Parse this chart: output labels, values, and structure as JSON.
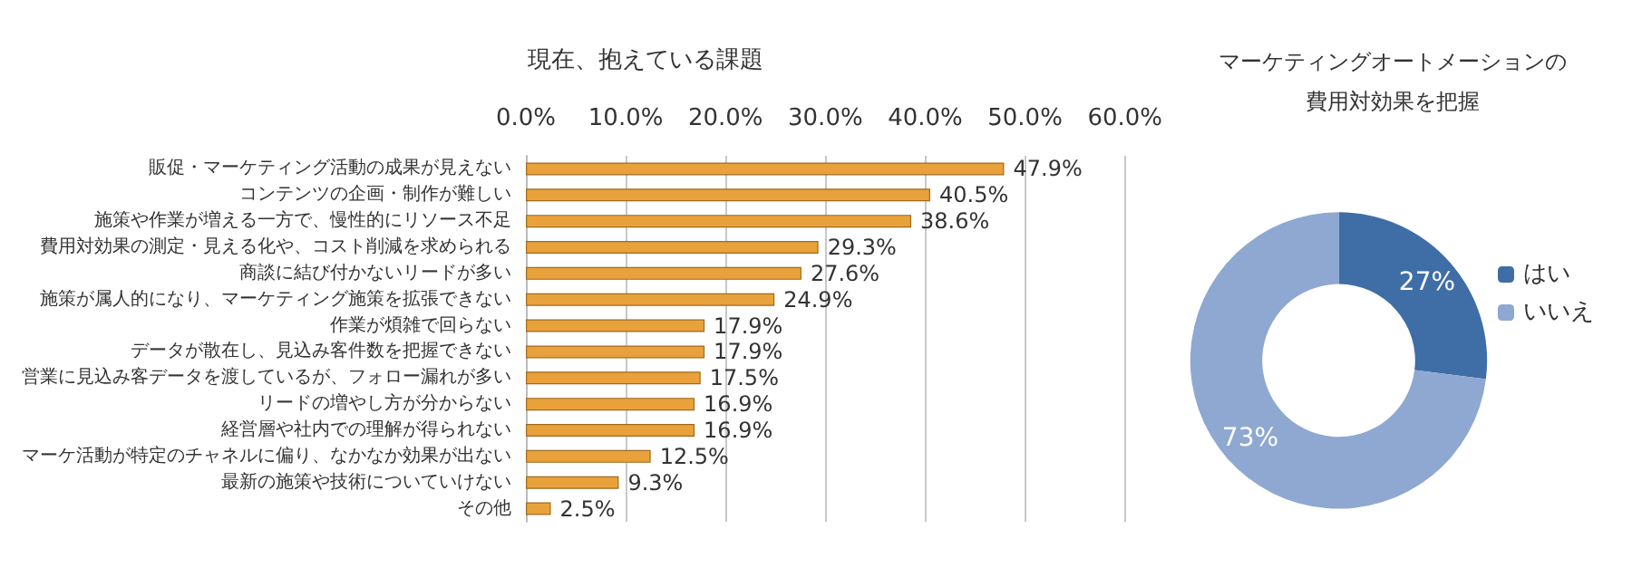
{
  "chart_data": [
    {
      "type": "bar",
      "orientation": "horizontal",
      "title": "現在、抱えている課題",
      "categories": [
        "販促・マーケティング活動の成果が見えない",
        "コンテンツの企画・制作が難しい",
        "施策や作業が増える一方で、慢性的にリソース不足",
        "費用対効果の測定・見える化や、コスト削減を求められる",
        "商談に結び付かないリードが多い",
        "施策が属人的になり、マーケティング施策を拡張できない",
        "作業が煩雑で回らない",
        "データが散在し、見込み客件数を把握できない",
        "営業に見込み客データを渡しているが、フォロー漏れが多い",
        "リードの増やし方が分からない",
        "経営層や社内での理解が得られない",
        "マーケ活動が特定のチャネルに偏り、なかなか効果が出ない",
        "最新の施策や技術についていけない",
        "その他"
      ],
      "values": [
        47.9,
        40.5,
        38.6,
        29.3,
        27.6,
        24.9,
        17.9,
        17.9,
        17.5,
        16.9,
        16.9,
        12.5,
        9.3,
        2.5
      ],
      "value_labels": [
        "47.9%",
        "40.5%",
        "38.6%",
        "29.3%",
        "27.6%",
        "24.9%",
        "17.9%",
        "17.9%",
        "17.5%",
        "16.9%",
        "16.9%",
        "12.5%",
        "9.3%",
        "2.5%"
      ],
      "color": "#e9a23b",
      "xlim": [
        0,
        60
      ],
      "xticks": [
        {
          "value": 0,
          "label": "0.0%"
        },
        {
          "value": 10,
          "label": "10.0%"
        },
        {
          "value": 20,
          "label": "20.0%"
        },
        {
          "value": 30,
          "label": "30.0%"
        },
        {
          "value": 40,
          "label": "40.0%"
        },
        {
          "value": 50,
          "label": "50.0%"
        },
        {
          "value": 60,
          "label": "60.0%"
        }
      ],
      "grid": "x",
      "legend": false
    },
    {
      "type": "donut",
      "title": "マーケティングオートメーションの費用対効果を把握",
      "categories": [
        "はい",
        "いいえ"
      ],
      "values": [
        27,
        73
      ],
      "colors": [
        "#3f6ea6",
        "#8ea8d2"
      ],
      "value_labels": [
        "27%",
        "73%"
      ],
      "legend": "right"
    }
  ]
}
